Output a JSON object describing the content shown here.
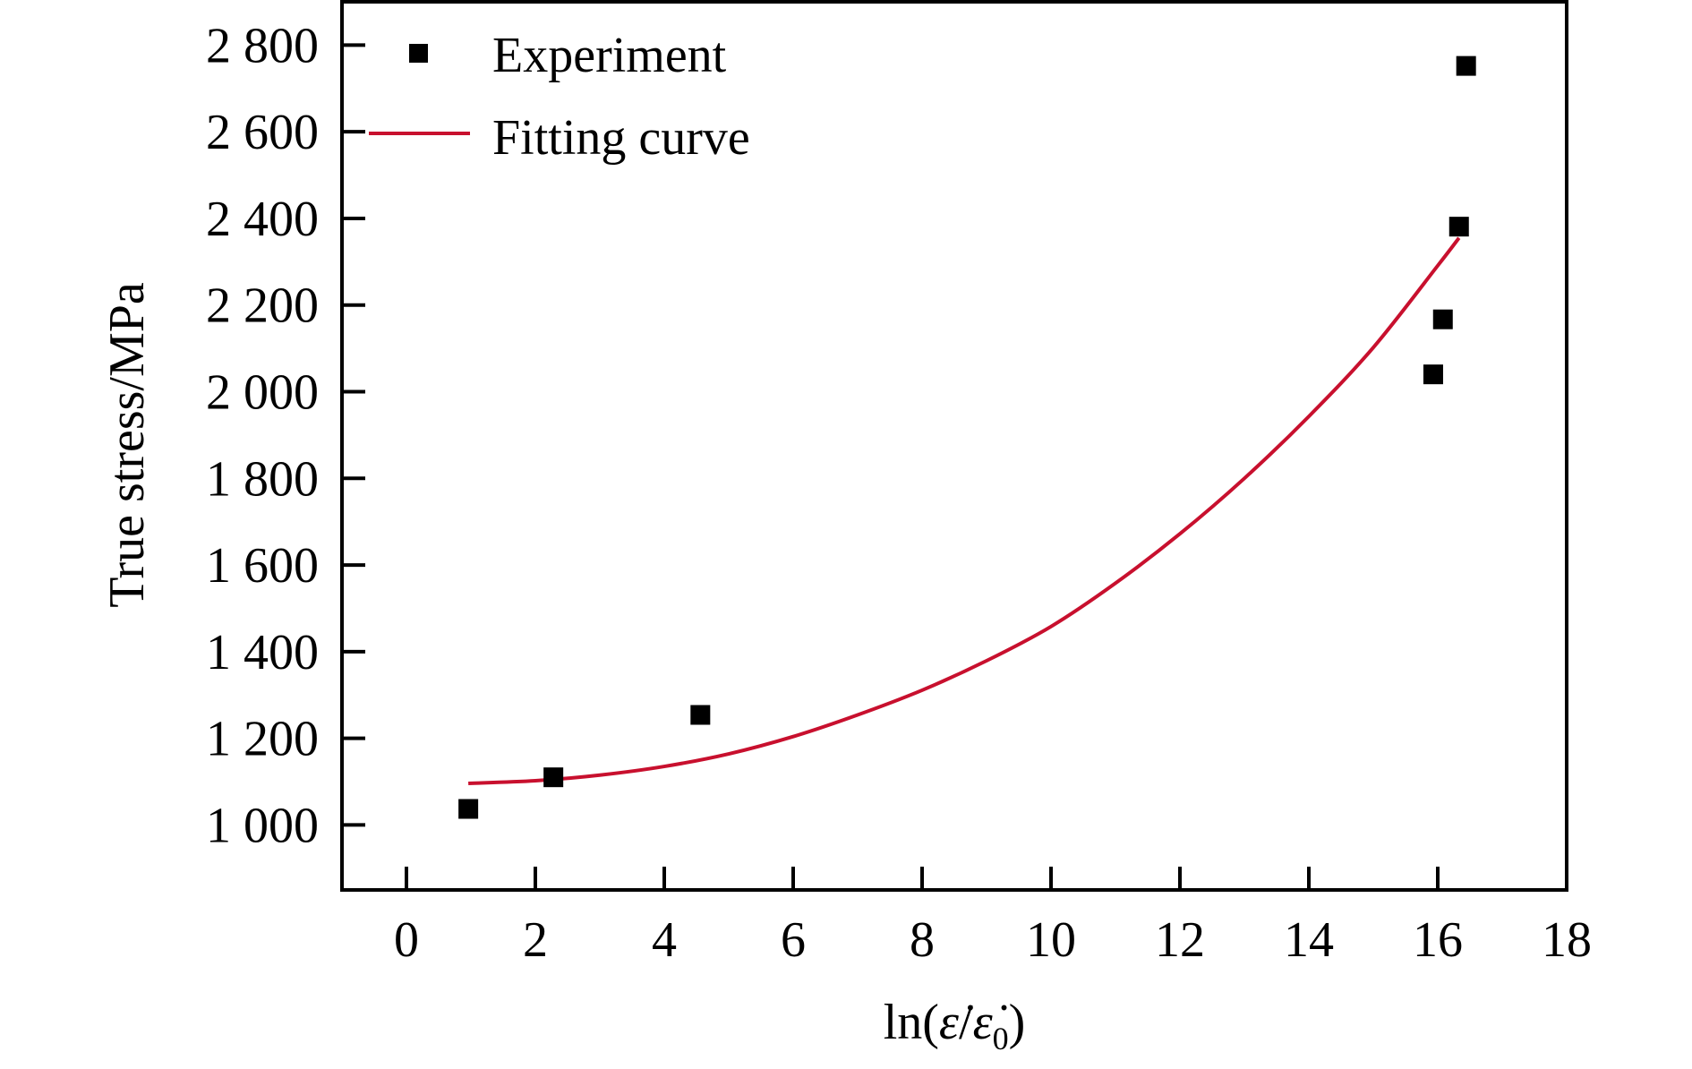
{
  "chart_data": {
    "type": "scatter",
    "xlabel_parts": [
      "ln(",
      "ε̇",
      "/",
      "ε̇",
      "0",
      ")"
    ],
    "ylabel": "True stress/MPa",
    "xlim": [
      -1,
      18
    ],
    "ylim": [
      850,
      2900
    ],
    "x_ticks": [
      0,
      2,
      4,
      6,
      8,
      10,
      12,
      14,
      16,
      18
    ],
    "x_tick_labels": [
      "0",
      "2",
      "4",
      "6",
      "8",
      "10",
      "12",
      "14",
      "16",
      "18"
    ],
    "y_ticks": [
      1000,
      1200,
      1400,
      1600,
      1800,
      2000,
      2200,
      2400,
      2600,
      2800
    ],
    "y_tick_labels": [
      "1 000",
      "1 200",
      "1 400",
      "1 600",
      "1 800",
      "2 000",
      "2 200",
      "2 400",
      "2 600",
      "2 800"
    ],
    "grid": false,
    "legend_position": "top-left",
    "series": [
      {
        "name": "Experiment",
        "kind": "scatter",
        "marker": "square",
        "color": "#000000",
        "x": [
          0.96,
          2.28,
          4.56,
          15.93,
          16.08,
          16.33,
          16.44
        ],
        "y": [
          1037,
          1110,
          1254,
          2040,
          2167,
          2381,
          2752
        ]
      },
      {
        "name": "Fitting curve",
        "kind": "line",
        "color": "#c8102e",
        "x": [
          0.96,
          2,
          3,
          4,
          5,
          6,
          7,
          8,
          9,
          10,
          11,
          12,
          13,
          14,
          15,
          16,
          16.33
        ],
        "y": [
          1096,
          1102,
          1115,
          1135,
          1164,
          1204,
          1254,
          1311,
          1379,
          1458,
          1558,
          1672,
          1800,
          1943,
          2102,
          2291,
          2355
        ]
      }
    ]
  }
}
